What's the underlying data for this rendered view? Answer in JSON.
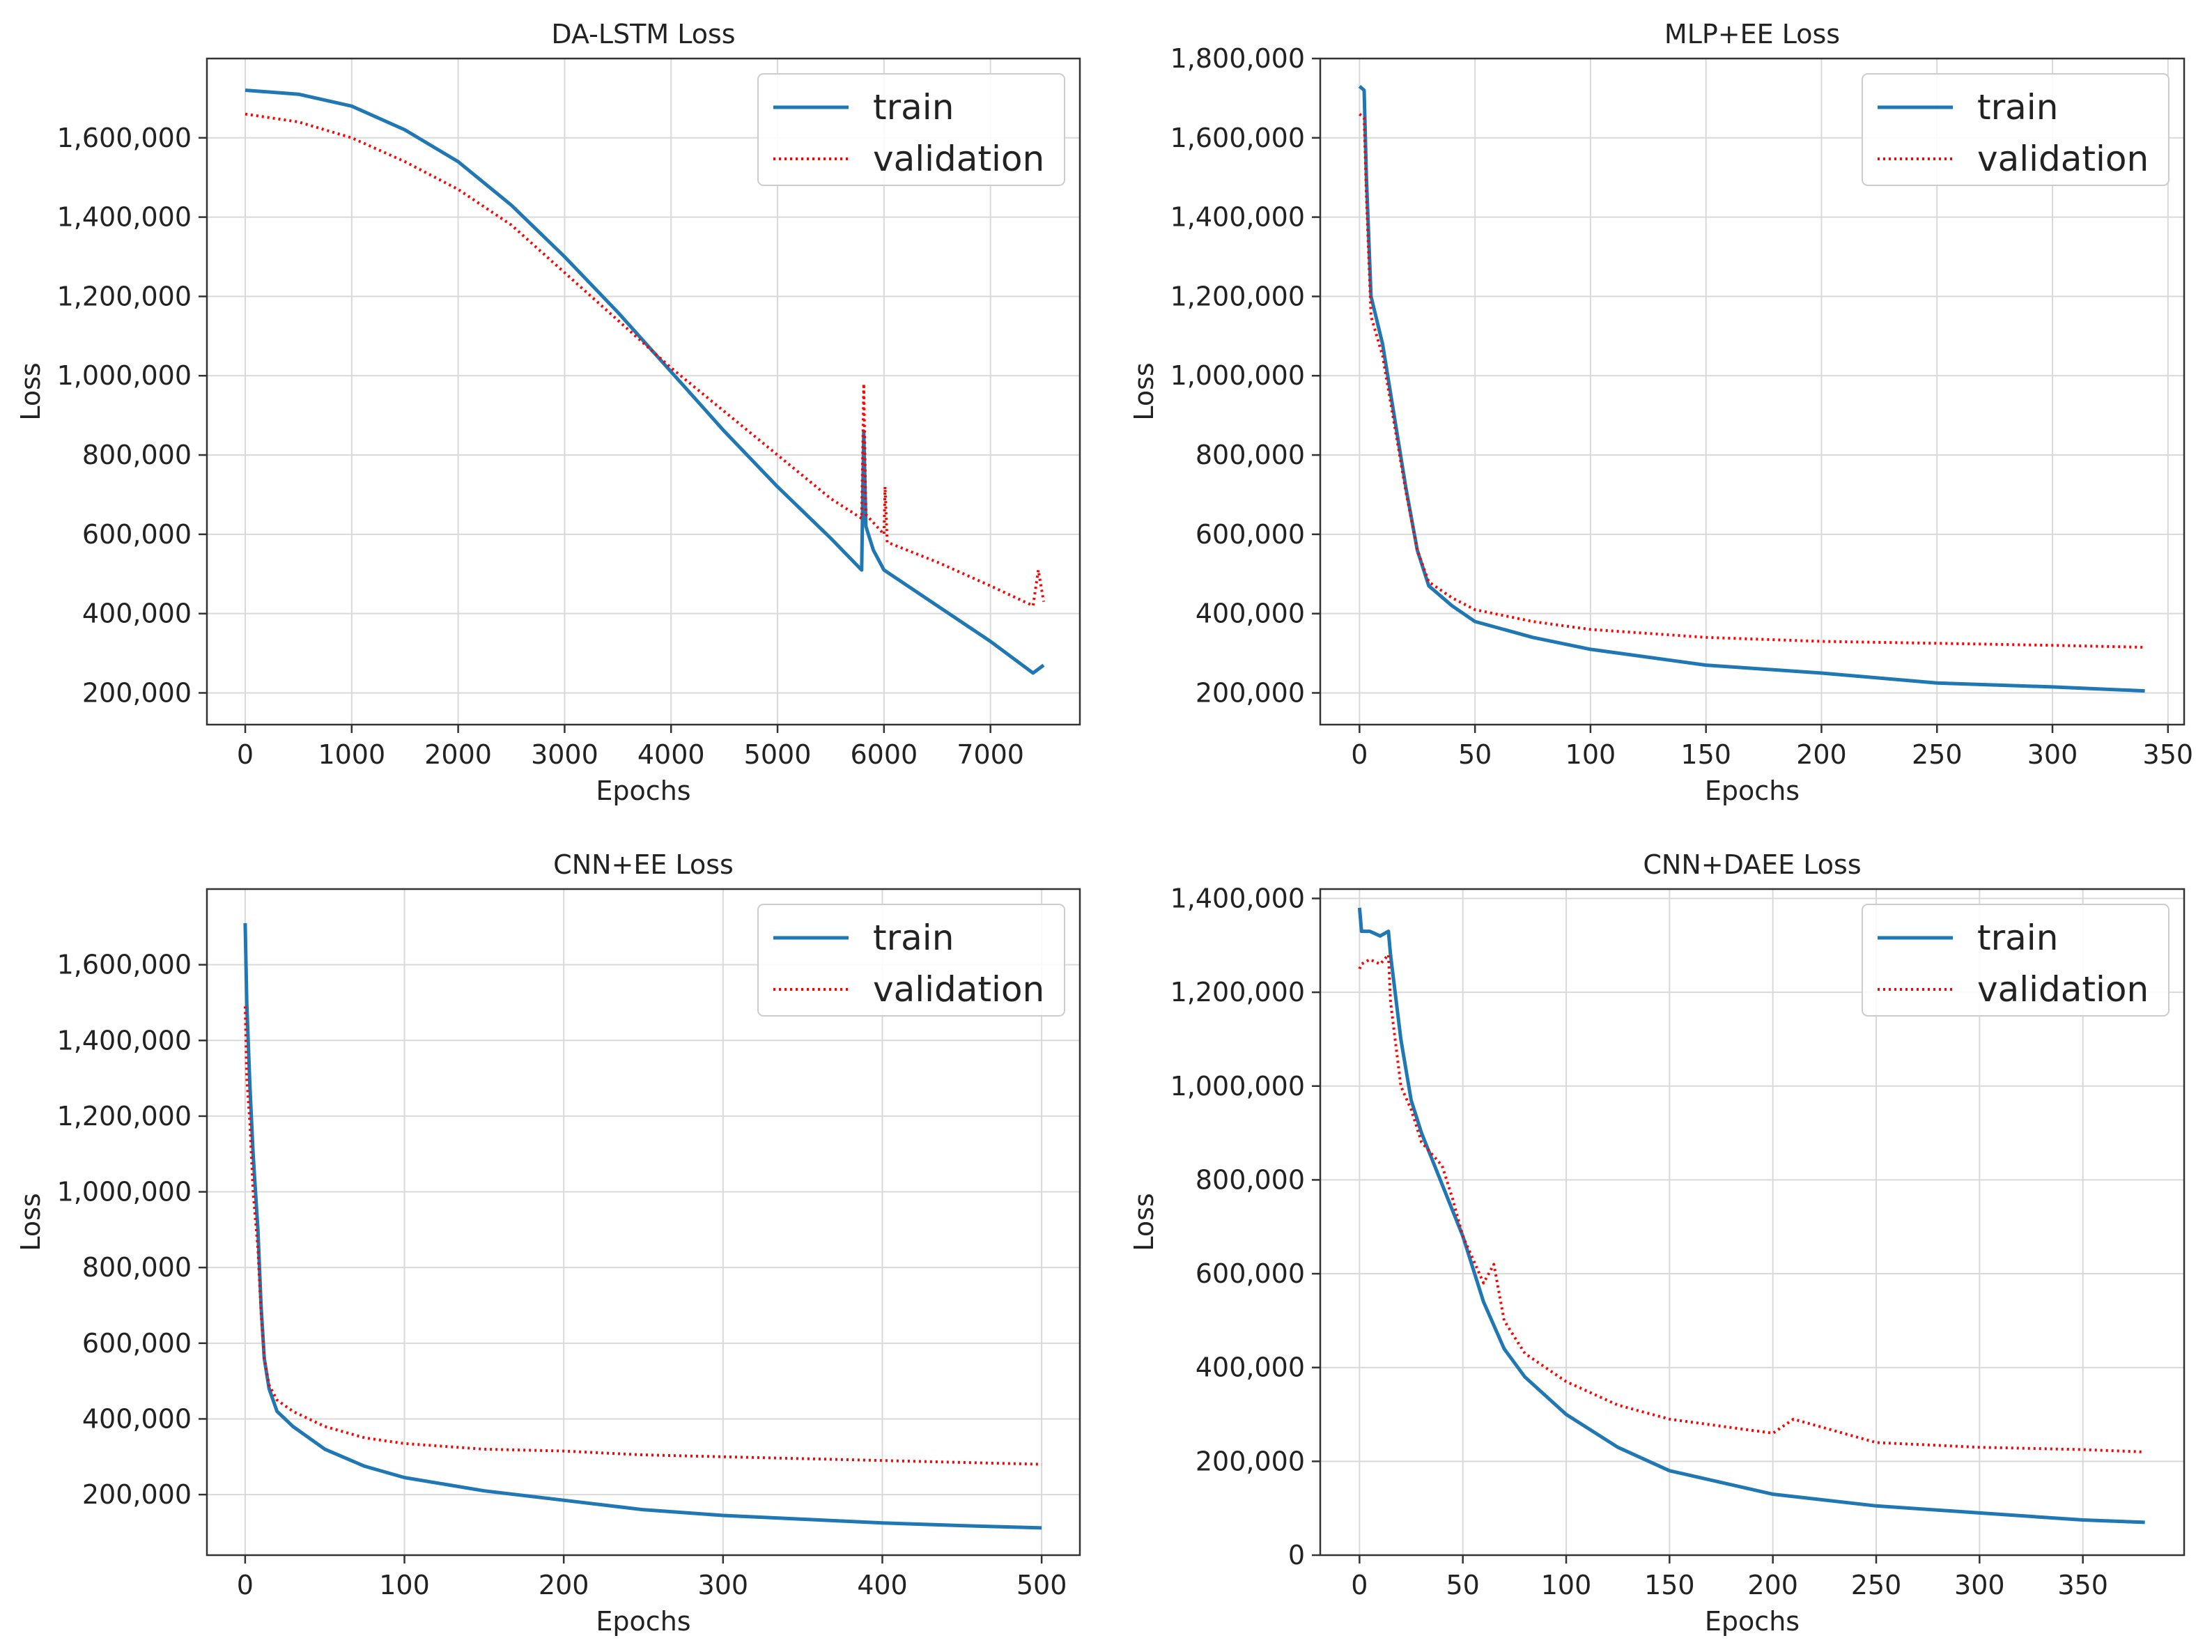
{
  "figure": {
    "colors": {
      "train": "#1f77b4",
      "validation": "#ff0000"
    },
    "line_styles": {
      "train": "solid",
      "validation": "dotted"
    },
    "legend_position": "top-right",
    "grid": true
  },
  "chart_data": [
    {
      "type": "line",
      "title": "DA-LSTM Loss",
      "xlabel": "Epochs",
      "ylabel": "Loss",
      "xlim": [
        -360,
        7840
      ],
      "ylim": [
        120000,
        1800000
      ],
      "xticks": [
        0,
        1000,
        2000,
        3000,
        4000,
        5000,
        6000,
        7000
      ],
      "xtick_labels": [
        "0",
        "1000",
        "2000",
        "3000",
        "4000",
        "5000",
        "6000",
        "7000"
      ],
      "yticks": [
        200000,
        400000,
        600000,
        800000,
        1000000,
        1200000,
        1400000,
        1600000
      ],
      "ytick_labels": [
        "200,000",
        "400,000",
        "600,000",
        "800,000",
        "1,000,000",
        "1,200,000",
        "1,400,000",
        "1,600,000"
      ],
      "legend": [
        "train",
        "validation"
      ],
      "series": [
        {
          "name": "train",
          "x": [
            0,
            500,
            1000,
            1500,
            2000,
            2500,
            3000,
            3500,
            4000,
            4500,
            5000,
            5500,
            5790,
            5810,
            5830,
            5900,
            6000,
            6500,
            7000,
            7400,
            7500
          ],
          "y": [
            1720000,
            1710000,
            1680000,
            1620000,
            1540000,
            1430000,
            1300000,
            1160000,
            1010000,
            860000,
            720000,
            590000,
            510000,
            860000,
            620000,
            560000,
            510000,
            420000,
            330000,
            250000,
            270000
          ]
        },
        {
          "name": "validation",
          "x": [
            0,
            500,
            1000,
            1500,
            2000,
            2500,
            3000,
            3500,
            4000,
            4500,
            5000,
            5500,
            5790,
            5810,
            5830,
            6000,
            6010,
            6030,
            6500,
            7000,
            7400,
            7450,
            7500
          ],
          "y": [
            1660000,
            1640000,
            1600000,
            1540000,
            1470000,
            1380000,
            1260000,
            1140000,
            1020000,
            910000,
            800000,
            690000,
            640000,
            980000,
            650000,
            600000,
            720000,
            580000,
            530000,
            470000,
            420000,
            510000,
            430000
          ]
        }
      ]
    },
    {
      "type": "line",
      "title": "MLP+EE Loss",
      "xlabel": "Epochs",
      "ylabel": "Loss",
      "xlim": [
        -17,
        357
      ],
      "ylim": [
        120000,
        1800000
      ],
      "xticks": [
        0,
        50,
        100,
        150,
        200,
        250,
        300,
        350
      ],
      "xtick_labels": [
        "0",
        "50",
        "100",
        "150",
        "200",
        "250",
        "300",
        "350"
      ],
      "yticks": [
        200000,
        400000,
        600000,
        800000,
        1000000,
        1200000,
        1400000,
        1600000,
        1800000
      ],
      "ytick_labels": [
        "200,000",
        "400,000",
        "600,000",
        "800,000",
        "1,000,000",
        "1,200,000",
        "1,400,000",
        "1,600,000",
        "1,800,000"
      ],
      "legend": [
        "train",
        "validation"
      ],
      "series": [
        {
          "name": "train",
          "x": [
            0,
            2,
            3,
            5,
            10,
            15,
            20,
            25,
            30,
            40,
            50,
            75,
            100,
            150,
            200,
            250,
            300,
            340
          ],
          "y": [
            1730000,
            1720000,
            1500000,
            1200000,
            1080000,
            900000,
            720000,
            560000,
            470000,
            420000,
            380000,
            340000,
            310000,
            270000,
            250000,
            225000,
            215000,
            205000
          ]
        },
        {
          "name": "validation",
          "x": [
            0,
            2,
            3,
            5,
            10,
            15,
            20,
            25,
            30,
            40,
            50,
            75,
            100,
            150,
            200,
            250,
            300,
            340
          ],
          "y": [
            1660000,
            1650000,
            1450000,
            1150000,
            1050000,
            880000,
            710000,
            560000,
            480000,
            440000,
            410000,
            380000,
            360000,
            340000,
            330000,
            325000,
            320000,
            315000
          ]
        }
      ]
    },
    {
      "type": "line",
      "title": "CNN+EE Loss",
      "xlabel": "Epochs",
      "ylabel": "Loss",
      "xlim": [
        -24,
        524
      ],
      "ylim": [
        40000,
        1800000
      ],
      "xticks": [
        0,
        100,
        200,
        300,
        400,
        500
      ],
      "xtick_labels": [
        "0",
        "100",
        "200",
        "300",
        "400",
        "500"
      ],
      "yticks": [
        200000,
        400000,
        600000,
        800000,
        1000000,
        1200000,
        1400000,
        1600000
      ],
      "ytick_labels": [
        "200,000",
        "400,000",
        "600,000",
        "800,000",
        "1,000,000",
        "1,200,000",
        "1,400,000",
        "1,600,000"
      ],
      "legend": [
        "train",
        "validation"
      ],
      "series": [
        {
          "name": "train",
          "x": [
            0,
            1,
            3,
            5,
            8,
            10,
            12,
            15,
            20,
            30,
            50,
            75,
            100,
            150,
            200,
            250,
            300,
            350,
            400,
            450,
            500
          ],
          "y": [
            1710000,
            1500000,
            1280000,
            1100000,
            900000,
            700000,
            560000,
            480000,
            420000,
            380000,
            320000,
            275000,
            245000,
            210000,
            185000,
            160000,
            145000,
            135000,
            125000,
            118000,
            112000
          ]
        },
        {
          "name": "validation",
          "x": [
            0,
            1,
            3,
            5,
            8,
            10,
            12,
            15,
            20,
            30,
            50,
            75,
            100,
            150,
            200,
            250,
            300,
            350,
            400,
            450,
            500
          ],
          "y": [
            1490000,
            1300000,
            1180000,
            1000000,
            850000,
            680000,
            560000,
            490000,
            450000,
            420000,
            380000,
            350000,
            335000,
            320000,
            315000,
            305000,
            300000,
            295000,
            290000,
            285000,
            280000
          ]
        }
      ]
    },
    {
      "type": "line",
      "title": "CNN+DAEE Loss",
      "xlabel": "Epochs",
      "ylabel": "Loss",
      "xlim": [
        -19,
        399
      ],
      "ylim": [
        0,
        1420000
      ],
      "xticks": [
        0,
        50,
        100,
        150,
        200,
        250,
        300,
        350
      ],
      "xtick_labels": [
        "0",
        "50",
        "100",
        "150",
        "200",
        "250",
        "300",
        "350"
      ],
      "yticks": [
        0,
        200000,
        400000,
        600000,
        800000,
        1000000,
        1200000,
        1400000
      ],
      "ytick_labels": [
        "0",
        "200,000",
        "400,000",
        "600,000",
        "800,000",
        "1,000,000",
        "1,200,000",
        "1,400,000"
      ],
      "legend": [
        "train",
        "validation"
      ],
      "series": [
        {
          "name": "train",
          "x": [
            0,
            1,
            5,
            10,
            14,
            15,
            20,
            25,
            30,
            40,
            50,
            60,
            70,
            80,
            100,
            125,
            150,
            200,
            250,
            300,
            350,
            380
          ],
          "y": [
            1380000,
            1330000,
            1330000,
            1320000,
            1330000,
            1280000,
            1100000,
            970000,
            900000,
            790000,
            680000,
            540000,
            440000,
            380000,
            300000,
            230000,
            180000,
            130000,
            105000,
            90000,
            75000,
            70000
          ]
        },
        {
          "name": "validation",
          "x": [
            0,
            1,
            5,
            10,
            14,
            15,
            20,
            25,
            30,
            40,
            45,
            50,
            60,
            65,
            70,
            80,
            100,
            125,
            150,
            200,
            210,
            250,
            300,
            350,
            380
          ],
          "y": [
            1250000,
            1260000,
            1270000,
            1260000,
            1280000,
            1180000,
            1000000,
            950000,
            880000,
            830000,
            760000,
            680000,
            580000,
            620000,
            500000,
            430000,
            370000,
            320000,
            290000,
            260000,
            290000,
            240000,
            230000,
            225000,
            220000
          ]
        }
      ]
    }
  ]
}
